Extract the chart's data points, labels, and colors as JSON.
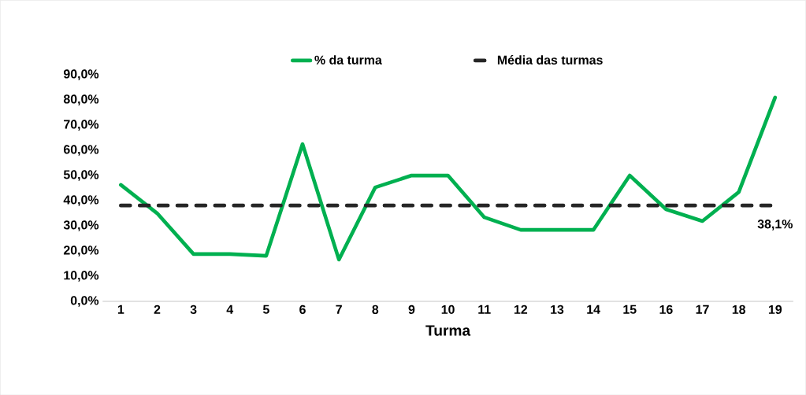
{
  "chart_data": {
    "type": "line",
    "xlabel": "Turma",
    "categories": [
      "1",
      "2",
      "3",
      "4",
      "5",
      "6",
      "7",
      "8",
      "9",
      "10",
      "11",
      "12",
      "13",
      "14",
      "15",
      "16",
      "17",
      "18",
      "19"
    ],
    "series": [
      {
        "name": "% da turma",
        "color": "#00b050",
        "line_style": "solid",
        "values": [
          46.3,
          35,
          18.8,
          18.8,
          18.1,
          62.5,
          16.6,
          45.3,
          50,
          50,
          33.4,
          28.4,
          28.4,
          28.4,
          50,
          36.6,
          31.9,
          43.4,
          81
        ]
      },
      {
        "name": "Média das turmas",
        "color": "#262626",
        "line_style": "dashed",
        "values": [
          38.1,
          38.1,
          38.1,
          38.1,
          38.1,
          38.1,
          38.1,
          38.1,
          38.1,
          38.1,
          38.1,
          38.1,
          38.1,
          38.1,
          38.1,
          38.1,
          38.1,
          38.1,
          38.1
        ],
        "value_labels": [
          null,
          null,
          null,
          null,
          null,
          null,
          null,
          null,
          null,
          null,
          null,
          null,
          null,
          null,
          null,
          null,
          null,
          null,
          "38,1%"
        ]
      }
    ],
    "ylim": [
      0,
      90
    ],
    "yticks": [
      {
        "value": 0,
        "label": "0,0%"
      },
      {
        "value": 10,
        "label": "10,0%"
      },
      {
        "value": 20,
        "label": "20,0%"
      },
      {
        "value": 30,
        "label": "30,0%"
      },
      {
        "value": 40,
        "label": "40,0%"
      },
      {
        "value": 50,
        "label": "50,0%"
      },
      {
        "value": 60,
        "label": "60,0%"
      },
      {
        "value": 70,
        "label": "70,0%"
      },
      {
        "value": 80,
        "label": "80,0%"
      },
      {
        "value": 90,
        "label": "90,0%"
      }
    ],
    "grid": false,
    "legend": "top"
  }
}
